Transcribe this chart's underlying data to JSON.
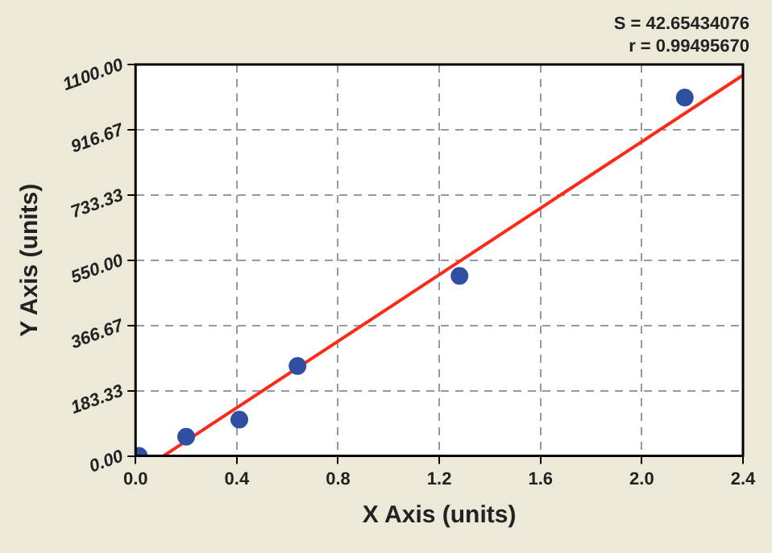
{
  "chart_data": {
    "type": "scatter",
    "xlabel": "X Axis (units)",
    "ylabel": "Y Axis (units)",
    "annotations": [
      "S = 42.65434076",
      "r = 0.99495670"
    ],
    "series": [
      {
        "color": "#2f4fa3",
        "marker": "circle",
        "x": [
          0.013,
          0.2,
          0.41,
          0.64,
          1.28,
          2.17
        ],
        "values": [
          0,
          54,
          102,
          253,
          506,
          1007
        ]
      },
      {
        "type": "line",
        "color": "#ff2a1a",
        "marker": "none",
        "x": [
          0.11,
          2.4
        ],
        "values": [
          0,
          1070
        ]
      }
    ],
    "xlim": [
      0,
      2.4
    ],
    "ylim": [
      0,
      1100
    ],
    "xticks": [
      {
        "value": 0,
        "label": "0.0"
      },
      {
        "value": 0.4,
        "label": "0.4"
      },
      {
        "value": 0.8,
        "label": "0.8"
      },
      {
        "value": 1.2,
        "label": "1.2"
      },
      {
        "value": 1.6,
        "label": "1.6"
      },
      {
        "value": 2.0,
        "label": "2.0"
      },
      {
        "value": 2.4,
        "label": "2.4"
      }
    ],
    "yticks": [
      {
        "value": 0,
        "label": "0.00"
      },
      {
        "value": 183.33,
        "label": "183.33"
      },
      {
        "value": 366.67,
        "label": "366.67"
      },
      {
        "value": 550,
        "label": "550.00"
      },
      {
        "value": 733.33,
        "label": "733.33"
      },
      {
        "value": 916.67,
        "label": "916.67"
      },
      {
        "value": 1100,
        "label": "1100.00"
      }
    ],
    "grid": true,
    "legend": false,
    "line_style": "solid"
  }
}
